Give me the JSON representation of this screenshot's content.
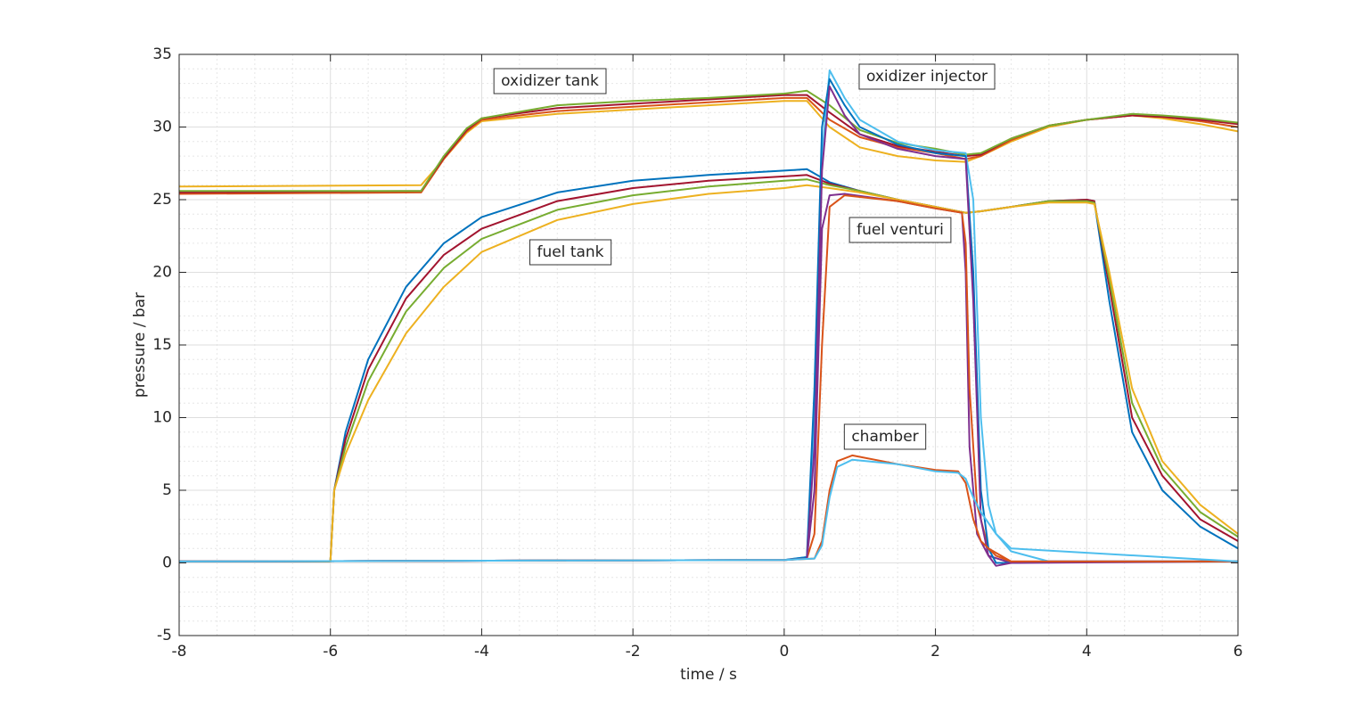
{
  "chart_data": {
    "type": "line",
    "xlabel": "time / s",
    "ylabel": "pressure / bar",
    "xlim": [
      -8,
      6
    ],
    "xticks": [
      -8,
      -6,
      -4,
      -2,
      0,
      2,
      4,
      6
    ],
    "ylim": [
      -5,
      35
    ],
    "yticks": [
      -5,
      0,
      5,
      10,
      15,
      20,
      25,
      30,
      35
    ],
    "grid": true,
    "minor_grid": true,
    "annotations": [
      "oxidizer tank",
      "oxidizer injector",
      "fuel tank",
      "fuel venturi",
      "chamber"
    ],
    "series": [
      {
        "color": "#edb120",
        "x": [
          -8,
          -4.8,
          -4.5,
          -4.2,
          -4,
          -3,
          -2,
          -1,
          0,
          0.3,
          0.6,
          1,
          1.5,
          2,
          2.4,
          2.6,
          3,
          3.5,
          4,
          4.6,
          5,
          5.5,
          6
        ],
        "values": [
          25.9,
          26,
          27.8,
          29.6,
          30.4,
          30.9,
          31.2,
          31.5,
          31.8,
          31.8,
          30,
          28.6,
          28,
          27.7,
          27.6,
          28,
          29,
          30,
          30.5,
          30.8,
          30.6,
          30.2,
          29.7
        ]
      },
      {
        "color": "#d95319",
        "x": [
          -8,
          -4.8,
          -4.5,
          -4.2,
          -4,
          -3,
          -2,
          -1,
          0,
          0.3,
          0.6,
          1,
          1.5,
          2,
          2.4,
          2.6,
          3,
          3.5,
          4,
          4.6,
          5,
          5.5,
          6
        ],
        "values": [
          25.4,
          25.5,
          27.8,
          29.7,
          30.5,
          31.1,
          31.4,
          31.7,
          32,
          32,
          30.5,
          29.3,
          28.6,
          28.2,
          27.8,
          28,
          29.1,
          30.1,
          30.5,
          30.8,
          30.7,
          30.4,
          30
        ]
      },
      {
        "color": "#a2142f",
        "x": [
          -8,
          -4.8,
          -4.5,
          -4.2,
          -4,
          -3,
          -2,
          -1,
          0,
          0.3,
          0.6,
          1,
          1.5,
          2,
          2.4,
          2.6,
          3,
          3.5,
          4,
          4.6,
          5,
          5.5,
          6
        ],
        "values": [
          25.5,
          25.6,
          27.9,
          29.8,
          30.6,
          31.3,
          31.6,
          31.9,
          32.2,
          32.2,
          31,
          29.5,
          28.7,
          28.3,
          28,
          28.1,
          29.2,
          30.1,
          30.5,
          30.8,
          30.7,
          30.5,
          30.2
        ]
      },
      {
        "color": "#77ac30",
        "x": [
          -8,
          -4.8,
          -4.5,
          -4.2,
          -4,
          -3,
          -2,
          -1,
          0,
          0.3,
          0.6,
          1,
          1.5,
          2,
          2.4,
          2.6,
          3,
          3.5,
          4,
          4.6,
          5,
          5.5,
          6
        ],
        "values": [
          25.6,
          25.6,
          28,
          29.9,
          30.6,
          31.5,
          31.8,
          32,
          32.3,
          32.5,
          31.5,
          29.8,
          28.9,
          28.5,
          28.1,
          28.2,
          29.2,
          30.1,
          30.5,
          30.9,
          30.8,
          30.6,
          30.3
        ]
      },
      {
        "color": "#0072bd",
        "x": [
          -8,
          -6,
          -5.95,
          -5.8,
          -5.5,
          -5,
          -4.5,
          -4,
          -3,
          -2,
          -1,
          0,
          0.3,
          0.6,
          1,
          1.5,
          2,
          2.4,
          2.6,
          3,
          3.5,
          4,
          4.1,
          4.3,
          4.6,
          5,
          5.5,
          6
        ],
        "values": [
          0.1,
          0.1,
          5,
          9,
          14,
          19,
          22,
          23.8,
          25.5,
          26.3,
          26.7,
          27,
          27.1,
          26.2,
          25.6,
          25,
          24.5,
          24.1,
          24.2,
          24.5,
          24.9,
          25,
          24.9,
          18,
          9,
          5,
          2.5,
          1
        ]
      },
      {
        "color": "#a2142f",
        "x": [
          -8,
          -6,
          -5.95,
          -5.8,
          -5.5,
          -5,
          -4.5,
          -4,
          -3,
          -2,
          -1,
          0,
          0.3,
          0.6,
          1,
          1.5,
          2,
          2.4,
          2.6,
          3,
          3.5,
          4,
          4.1,
          4.3,
          4.6,
          5,
          5.5,
          6
        ],
        "values": [
          0.1,
          0.1,
          5,
          8.5,
          13.3,
          18.2,
          21.2,
          23,
          24.9,
          25.8,
          26.3,
          26.6,
          26.7,
          26.1,
          25.6,
          25,
          24.5,
          24.1,
          24.2,
          24.5,
          24.9,
          25,
          24.9,
          19,
          10,
          6,
          3,
          1.5
        ]
      },
      {
        "color": "#77ac30",
        "x": [
          -8,
          -6,
          -5.95,
          -5.8,
          -5.5,
          -5,
          -4.5,
          -4,
          -3,
          -2,
          -1,
          0,
          0.3,
          0.6,
          1,
          1.5,
          2,
          2.4,
          2.6,
          3,
          3.5,
          4,
          4.1,
          4.3,
          4.6,
          5,
          5.5,
          6
        ],
        "values": [
          0.1,
          0.1,
          5,
          8,
          12.5,
          17.3,
          20.3,
          22.3,
          24.3,
          25.3,
          25.9,
          26.3,
          26.4,
          26,
          25.6,
          25,
          24.5,
          24.1,
          24.2,
          24.5,
          24.9,
          24.9,
          24.8,
          19.5,
          11,
          6.5,
          3.5,
          1.8
        ]
      },
      {
        "color": "#edb120",
        "x": [
          -8,
          -6,
          -5.95,
          -5.8,
          -5.5,
          -5,
          -4.5,
          -4,
          -3,
          -2,
          -1,
          0,
          0.3,
          0.6,
          1,
          1.5,
          2,
          2.4,
          2.6,
          3,
          3.5,
          4,
          4.1,
          4.3,
          4.6,
          5,
          5.5,
          6
        ],
        "values": [
          0.1,
          0.1,
          5,
          7.5,
          11.2,
          15.8,
          19,
          21.4,
          23.6,
          24.7,
          25.4,
          25.8,
          26,
          25.8,
          25.5,
          25,
          24.5,
          24.1,
          24.2,
          24.5,
          24.8,
          24.8,
          24.7,
          20,
          12,
          7,
          4,
          2
        ]
      },
      {
        "color": "#7e2f8e",
        "x": [
          -8,
          0,
          0.3,
          0.4,
          0.5,
          0.6,
          0.8,
          1.5,
          2,
          2.35,
          2.4,
          2.45,
          2.55,
          2.7,
          3,
          6
        ],
        "values": [
          0.1,
          0.2,
          0.3,
          5,
          23,
          25.3,
          25.4,
          24.9,
          24.4,
          24.1,
          20,
          8,
          2,
          0.5,
          0,
          0.1
        ]
      },
      {
        "color": "#d95319",
        "x": [
          -8,
          0,
          0.3,
          0.4,
          0.5,
          0.6,
          0.8,
          1.5,
          2,
          2.35,
          2.4,
          2.45,
          2.55,
          2.7,
          3,
          6
        ],
        "values": [
          0.1,
          0.2,
          0.3,
          2,
          15,
          24.5,
          25.3,
          24.9,
          24.4,
          24.1,
          22,
          12,
          4,
          1,
          0.1,
          0.1
        ]
      },
      {
        "color": "#4dbeee",
        "x": [
          -8,
          0,
          0.3,
          0.4,
          0.5,
          0.6,
          0.8,
          1,
          1.5,
          2,
          2.4,
          2.5,
          2.6,
          2.7,
          2.8,
          3,
          3.5,
          6
        ],
        "values": [
          0.1,
          0.2,
          0.4,
          10,
          28,
          33.9,
          32,
          30.5,
          29,
          28.4,
          28.2,
          25,
          10,
          4,
          2,
          0.8,
          0.1,
          0.1
        ]
      },
      {
        "color": "#0072bd",
        "x": [
          -8,
          0,
          0.3,
          0.4,
          0.5,
          0.6,
          0.8,
          1,
          1.5,
          2,
          2.4,
          2.5,
          2.6,
          2.7,
          2.8,
          3,
          3.5,
          6
        ],
        "values": [
          0.1,
          0.2,
          0.4,
          12,
          30,
          33.3,
          31.5,
          30,
          28.8,
          28.2,
          28,
          20,
          5,
          1,
          0,
          0,
          0.1,
          0.1
        ]
      },
      {
        "color": "#7e2f8e",
        "x": [
          -8,
          0,
          0.3,
          0.4,
          0.5,
          0.6,
          0.8,
          1,
          1.5,
          2,
          2.4,
          2.5,
          2.6,
          2.7,
          2.8,
          3,
          3.5,
          6
        ],
        "values": [
          0.1,
          0.2,
          0.3,
          8,
          27,
          32.8,
          30.8,
          29.5,
          28.5,
          28,
          27.8,
          18,
          3,
          0.5,
          -0.2,
          0,
          0.1,
          0.1
        ]
      },
      {
        "color": "#d95319",
        "x": [
          -8,
          0,
          0.4,
          0.5,
          0.6,
          0.7,
          0.9,
          1.5,
          2,
          2.3,
          2.4,
          2.5,
          2.6,
          2.8,
          3,
          6
        ],
        "values": [
          0.1,
          0.2,
          0.3,
          1.5,
          5,
          7,
          7.4,
          6.8,
          6.4,
          6.3,
          5.5,
          3,
          1.5,
          0.5,
          0.1,
          0.1
        ]
      },
      {
        "color": "#4dbeee",
        "x": [
          -8,
          0,
          0.4,
          0.5,
          0.6,
          0.7,
          0.9,
          1.5,
          2,
          2.3,
          2.4,
          2.5,
          2.6,
          2.8,
          3,
          6
        ],
        "values": [
          0.1,
          0.2,
          0.3,
          1.2,
          4.5,
          6.6,
          7.1,
          6.8,
          6.3,
          6.2,
          5.8,
          4.5,
          3.5,
          2,
          1,
          0.1
        ]
      }
    ]
  }
}
